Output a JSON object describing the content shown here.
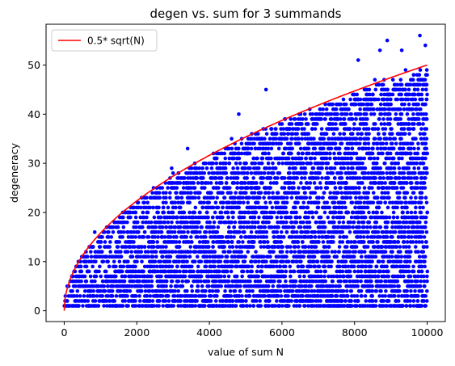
{
  "chart_data": {
    "type": "scatter",
    "title": "degen vs. sum for 3 summands",
    "xlabel": "value of sum N",
    "ylabel": "degeneracy",
    "xlim": [
      -500,
      10500
    ],
    "ylim": [
      -2.2,
      58.3
    ],
    "xticks": [
      0,
      2000,
      4000,
      6000,
      8000,
      10000
    ],
    "yticks": [
      0,
      10,
      20,
      30,
      40,
      50
    ],
    "grid": false,
    "legend_position": "top-left",
    "x_range": [
      1,
      10000
    ],
    "series": [
      {
        "type": "scatter",
        "marker": "filled circle",
        "color": "#0000ff",
        "envelope_formula": "degeneracy ≈ 0.5*sqrt(N)",
        "y_min": 1,
        "y_max_observed": 56,
        "annotated_points": [
          {
            "x": 9800,
            "y": 56
          },
          {
            "x": 8900,
            "y": 55
          },
          {
            "x": 9950,
            "y": 54
          },
          {
            "x": 9300,
            "y": 53
          },
          {
            "x": 8700,
            "y": 53
          },
          {
            "x": 8100,
            "y": 51
          },
          {
            "x": 5560,
            "y": 45
          },
          {
            "x": 4810,
            "y": 40
          },
          {
            "x": 3400,
            "y": 33
          },
          {
            "x": 2960,
            "y": 29
          },
          {
            "x": 840,
            "y": 16
          }
        ]
      },
      {
        "name": "0.5* sqrt(N)",
        "type": "line",
        "color": "#ff0000",
        "formula": "0.5*sqrt(N)",
        "x_range": [
          0,
          10000
        ]
      }
    ]
  }
}
